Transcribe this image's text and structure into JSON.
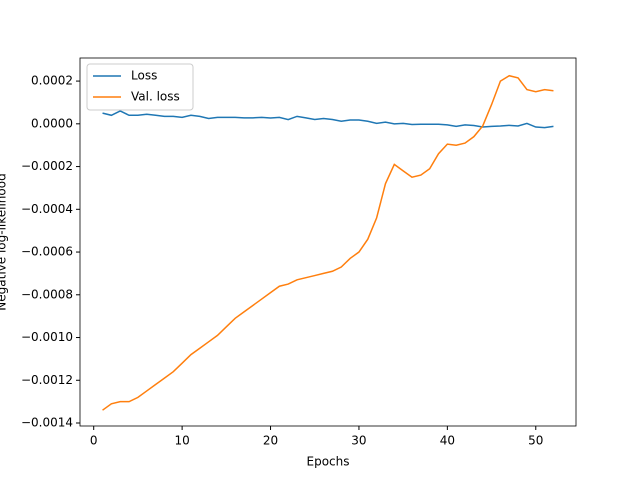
{
  "chart_data": {
    "type": "line",
    "xlabel": "Epochs",
    "ylabel": "Negative log-likelihood",
    "x": [
      1,
      2,
      3,
      4,
      5,
      6,
      7,
      8,
      9,
      10,
      11,
      12,
      13,
      14,
      15,
      16,
      17,
      18,
      19,
      20,
      21,
      22,
      23,
      24,
      25,
      26,
      27,
      28,
      29,
      30,
      31,
      32,
      33,
      34,
      35,
      36,
      37,
      38,
      39,
      40,
      41,
      42,
      43,
      44,
      45,
      46,
      47,
      48,
      49,
      50,
      51,
      52
    ],
    "series": [
      {
        "name": "Loss",
        "color": "#1f77b4",
        "values": [
          5e-05,
          4e-05,
          6e-05,
          4e-05,
          4e-05,
          4.5e-05,
          4e-05,
          3.5e-05,
          3.5e-05,
          3e-05,
          4e-05,
          3.5e-05,
          2.5e-05,
          3e-05,
          3e-05,
          3e-05,
          2.8e-05,
          2.8e-05,
          3e-05,
          2.7e-05,
          3e-05,
          2e-05,
          3.5e-05,
          2.8e-05,
          2e-05,
          2.5e-05,
          2e-05,
          1.2e-05,
          1.8e-05,
          1.8e-05,
          1.2e-05,
          2e-06,
          8e-06,
          0,
          2e-06,
          -3e-06,
          -2e-06,
          -2e-06,
          -2e-06,
          -5e-06,
          -1.2e-05,
          -5e-06,
          -8e-06,
          -1.5e-05,
          -1.2e-05,
          -1e-05,
          -7e-06,
          -1e-05,
          2e-06,
          -1.5e-05,
          -1.8e-05,
          -1.2e-05
        ]
      },
      {
        "name": "Val. loss",
        "color": "#ff7f0e",
        "values": [
          -0.00134,
          -0.00131,
          -0.0013,
          -0.0013,
          -0.00128,
          -0.00125,
          -0.00122,
          -0.00119,
          -0.00116,
          -0.00112,
          -0.00108,
          -0.00105,
          -0.00102,
          -0.00099,
          -0.00095,
          -0.00091,
          -0.00088,
          -0.00085,
          -0.00082,
          -0.00079,
          -0.00076,
          -0.00075,
          -0.00073,
          -0.00072,
          -0.00071,
          -0.0007,
          -0.00069,
          -0.00067,
          -0.00063,
          -0.0006,
          -0.00054,
          -0.00044,
          -0.00028,
          -0.00019,
          -0.00022,
          -0.00025,
          -0.00024,
          -0.00021,
          -0.00014,
          -9.5e-05,
          -0.0001,
          -9e-05,
          -6e-05,
          -1e-05,
          9e-05,
          0.0002,
          0.000225,
          0.000215,
          0.00016,
          0.00015,
          0.00016,
          0.000155
        ]
      }
    ],
    "xlim": [
      -1.55,
      54.55
    ],
    "ylim": [
      -0.001414,
      0.000308
    ],
    "xticks": [
      0,
      10,
      20,
      30,
      40,
      50
    ],
    "yticks": [
      {
        "value": -0.0014,
        "label": "−0.0014"
      },
      {
        "value": -0.0012,
        "label": "−0.0012"
      },
      {
        "value": -0.001,
        "label": "−0.0010"
      },
      {
        "value": -0.0008,
        "label": "−0.0008"
      },
      {
        "value": -0.0006,
        "label": "−0.0006"
      },
      {
        "value": -0.0004,
        "label": "−0.0004"
      },
      {
        "value": -0.0002,
        "label": "−0.0002"
      },
      {
        "value": 0,
        "label": "0.0000"
      },
      {
        "value": 0.0002,
        "label": "0.0002"
      }
    ],
    "legend": "upper left",
    "grid": false
  }
}
